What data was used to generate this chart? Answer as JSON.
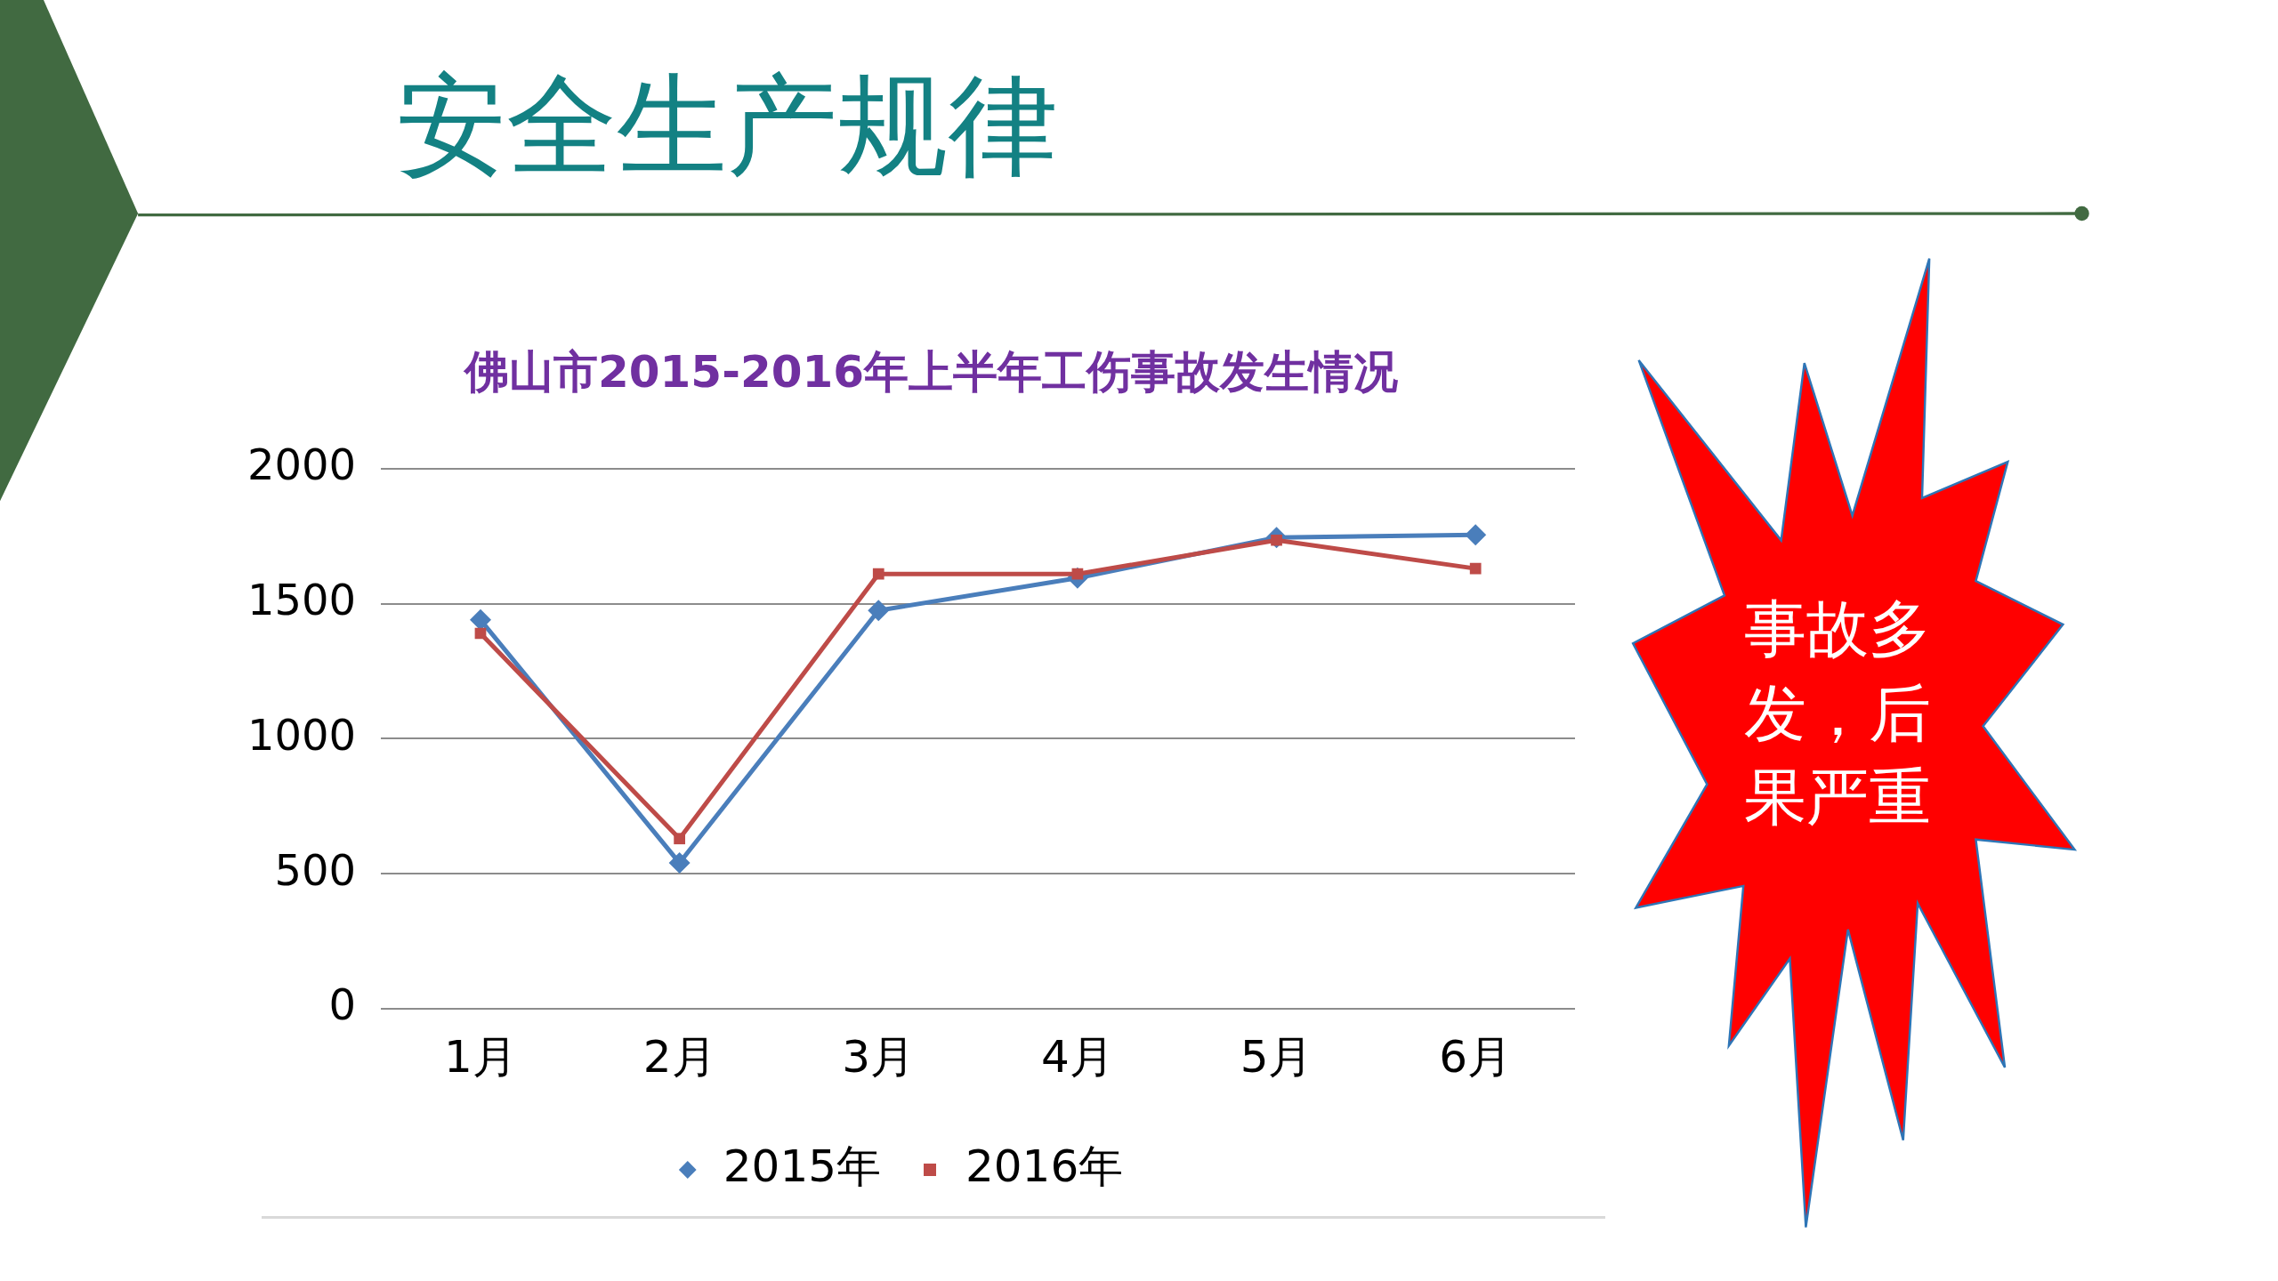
{
  "chart_data": {
    "type": "line",
    "title": "安全生产规律",
    "subtitle": "佛山市2015-2016年上半年工伤事故发生情况",
    "categories": [
      "1月",
      "2月",
      "3月",
      "4月",
      "5月",
      "6月"
    ],
    "series": [
      {
        "name": "2015年",
        "color": "#4a7ebb",
        "marker": "diamond",
        "values": [
          1440,
          540,
          1475,
          1595,
          1745,
          1755
        ]
      },
      {
        "name": "2016年",
        "color": "#be4b48",
        "marker": "square",
        "values": [
          1390,
          630,
          1610,
          1610,
          1735,
          1630
        ]
      }
    ],
    "ylim": [
      0,
      2000
    ],
    "yticks": [
      0,
      500,
      1000,
      1500,
      2000
    ],
    "grid": "y",
    "legend": "bottom",
    "line_style": "solid",
    "annotations": [
      "事故多发，后果严重"
    ]
  }
}
